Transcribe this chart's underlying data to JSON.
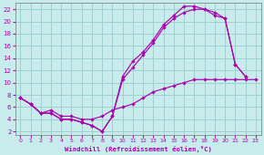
{
  "xlabel": "Windchill (Refroidissement éolien,°C)",
  "xlim": [
    -0.5,
    23.5
  ],
  "ylim": [
    1.5,
    23
  ],
  "xticks": [
    0,
    1,
    2,
    3,
    4,
    5,
    6,
    7,
    8,
    9,
    10,
    11,
    12,
    13,
    14,
    15,
    16,
    17,
    18,
    19,
    20,
    21,
    22,
    23
  ],
  "yticks": [
    2,
    4,
    6,
    8,
    10,
    12,
    14,
    16,
    18,
    20,
    22
  ],
  "bg_color": "#c8ecec",
  "line_color": "#aa00aa",
  "grid_color": "#99cccc",
  "line1_x": [
    0,
    1,
    2,
    3,
    4,
    5,
    6,
    7,
    8,
    9,
    10,
    11,
    12,
    13,
    14,
    15,
    16,
    17,
    18,
    19,
    20,
    21,
    22
  ],
  "line1_y": [
    7.5,
    6.5,
    5.0,
    5.0,
    4.0,
    4.0,
    3.5,
    3.0,
    2.0,
    4.5,
    11.0,
    13.5,
    15.0,
    17.0,
    19.5,
    21.0,
    22.5,
    22.5,
    22.0,
    21.5,
    20.5,
    13.0,
    11.0
  ],
  "line2_x": [
    0,
    1,
    2,
    3,
    4,
    5,
    6,
    7,
    8,
    9,
    10,
    11,
    12,
    13,
    14,
    15,
    16,
    17,
    18,
    19,
    20,
    21,
    22
  ],
  "line2_y": [
    7.5,
    6.5,
    5.0,
    5.0,
    4.0,
    4.0,
    3.5,
    3.0,
    2.0,
    4.5,
    10.5,
    12.5,
    14.5,
    16.5,
    19.0,
    20.5,
    21.5,
    22.0,
    22.0,
    21.0,
    20.5,
    13.0,
    11.0
  ],
  "line3_x": [
    0,
    1,
    2,
    3,
    4,
    5,
    6,
    7,
    8,
    9,
    10,
    11,
    12,
    13,
    14,
    15,
    16,
    17,
    18,
    19,
    20,
    21,
    22,
    23
  ],
  "line3_y": [
    7.5,
    6.5,
    5.0,
    5.5,
    4.5,
    4.5,
    4.0,
    4.0,
    4.5,
    5.5,
    6.0,
    6.5,
    7.5,
    8.5,
    9.0,
    9.5,
    10.0,
    10.5,
    10.5,
    10.5,
    10.5,
    10.5,
    10.5,
    10.5
  ]
}
